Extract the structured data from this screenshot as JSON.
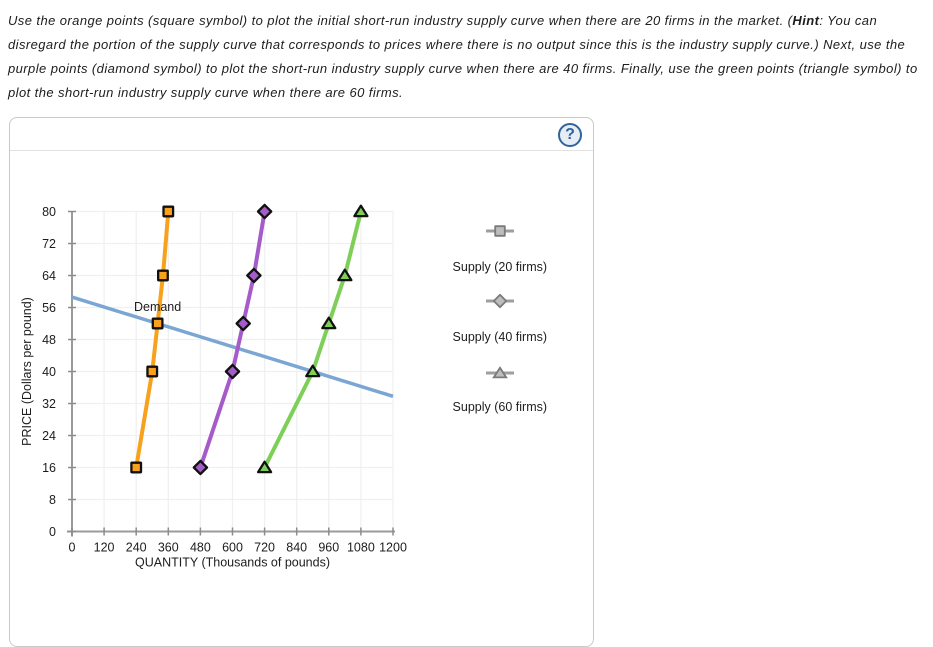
{
  "instructions": {
    "line1_pre": "Use the orange points (square symbol) to plot the initial short-run industry supply curve when there are 20 firms in the market. (",
    "hint_word": "Hint",
    "line1_post": ": You can",
    "line2": "disregard the portion of the supply curve that corresponds to prices where there is no output since this is the industry supply curve.) Next, use the",
    "line3": "purple points (diamond symbol) to plot the short-run industry supply curve when there are 40 firms. Finally, use the green points (triangle symbol) to",
    "line4": "plot the short-run industry supply curve when there are 60 firms."
  },
  "panel": {
    "help_label": "?"
  },
  "chart_data": {
    "type": "line",
    "title": "",
    "xlabel": "QUANTITY (Thousands of pounds)",
    "ylabel": "PRICE (Dollars per pound)",
    "xlim": [
      0,
      1200
    ],
    "ylim": [
      0,
      80
    ],
    "xticks": [
      0,
      120,
      240,
      360,
      480,
      600,
      720,
      840,
      960,
      1080,
      1200
    ],
    "yticks": [
      0,
      8,
      16,
      24,
      32,
      40,
      48,
      56,
      64,
      72,
      80
    ],
    "grid": true,
    "series": [
      {
        "name": "Demand",
        "color": "#7ba6d4",
        "marker": "none",
        "width": 3.5,
        "points": [
          [
            0,
            58.6
          ],
          [
            1200,
            33.8
          ]
        ],
        "label": {
          "text": "Demand",
          "x": 320,
          "y": 56.25
        }
      },
      {
        "name": "Supply (20 firms)",
        "color": "#f7a11c",
        "marker": "square",
        "width": 4,
        "points": [
          [
            240,
            16
          ],
          [
            300,
            40
          ],
          [
            320,
            52
          ],
          [
            340,
            64
          ],
          [
            360,
            80
          ]
        ]
      },
      {
        "name": "Supply (40 firms)",
        "color": "#a55bc9",
        "marker": "diamond",
        "width": 4,
        "points": [
          [
            480,
            16
          ],
          [
            600,
            40
          ],
          [
            640,
            52
          ],
          [
            680,
            64
          ],
          [
            720,
            80
          ]
        ]
      },
      {
        "name": "Supply (60 firms)",
        "color": "#7dcf57",
        "marker": "triangle",
        "width": 4,
        "points": [
          [
            720,
            16
          ],
          [
            900,
            40
          ],
          [
            960,
            52
          ],
          [
            1020,
            64
          ],
          [
            1080,
            80
          ]
        ]
      }
    ]
  },
  "legend": {
    "items": [
      {
        "label": "Supply (20 firms)",
        "marker": "square"
      },
      {
        "label": "Supply (40 firms)",
        "marker": "diamond"
      },
      {
        "label": "Supply (60 firms)",
        "marker": "triangle"
      }
    ],
    "line_color": "#9e9e9e",
    "marker_fill": "#bdbdbd",
    "marker_border": "#7a7a7a"
  }
}
